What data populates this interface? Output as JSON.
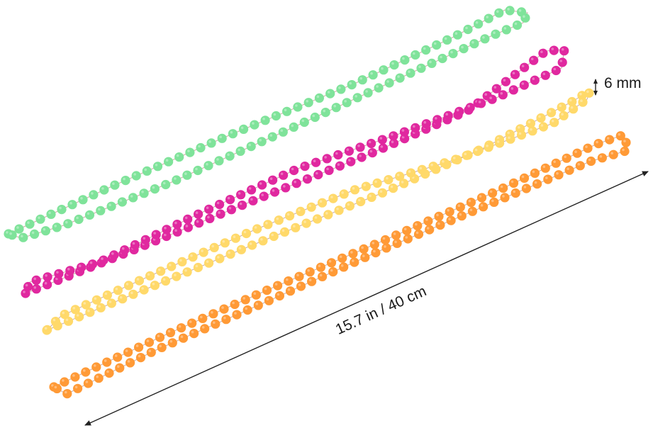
{
  "product": {
    "strands": [
      {
        "name": "green",
        "color": "#7fe39a"
      },
      {
        "name": "magenta",
        "color": "#e0289f"
      },
      {
        "name": "yellow",
        "color": "#ffd96a"
      },
      {
        "name": "orange",
        "color": "#ff9a36"
      }
    ],
    "thread_color": "#c9a9a0"
  },
  "dimensions": {
    "length_label": "15.7 in / 40 cm",
    "bead_size_label": "6 mm",
    "line_color": "#222222"
  }
}
